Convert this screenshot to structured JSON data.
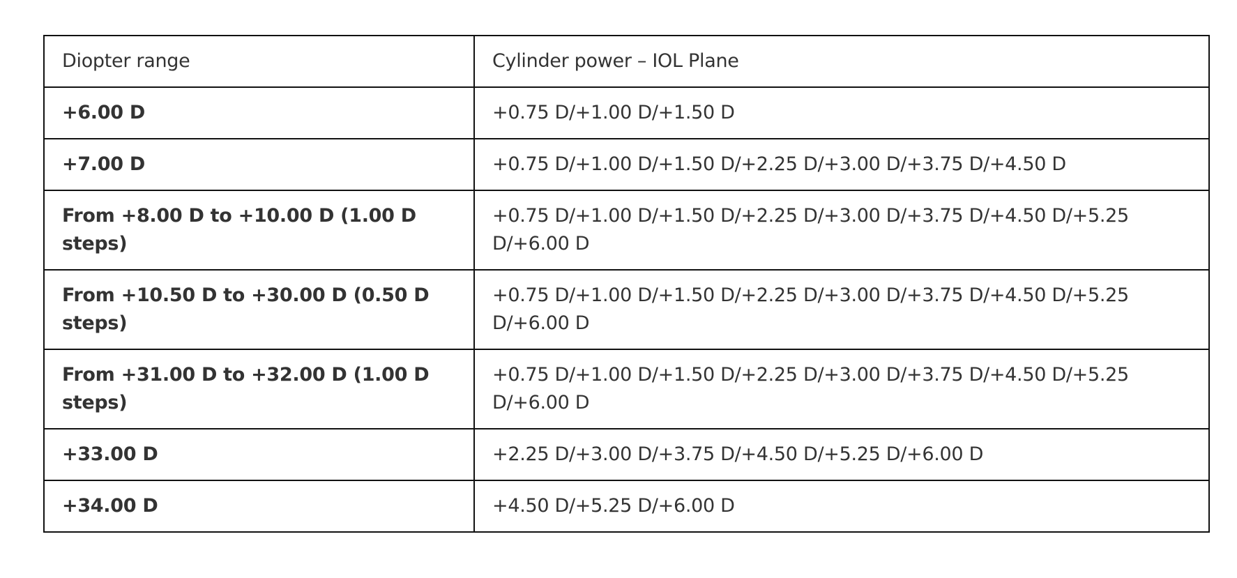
{
  "table": {
    "headers": [
      "Diopter range",
      "Cylinder power – IOL Plane"
    ],
    "rows": [
      {
        "range": "+6.00 D",
        "cylinder": "+0.75 D/+1.00 D/+1.50 D"
      },
      {
        "range": "+7.00 D",
        "cylinder": "+0.75 D/+1.00 D/+1.50 D/+2.25 D/+3.00 D/+3.75 D/+4.50 D"
      },
      {
        "range": "From +8.00 D to +10.00 D (1.00 D steps)",
        "cylinder": "+0.75 D/+1.00 D/+1.50 D/+2.25 D/+3.00 D/+3.75 D/+4.50 D/+5.25 D/+6.00 D"
      },
      {
        "range": "From +10.50 D to +30.00 D (0.50 D steps)",
        "cylinder": "+0.75 D/+1.00 D/+1.50 D/+2.25 D/+3.00 D/+3.75 D/+4.50 D/+5.25 D/+6.00 D"
      },
      {
        "range": "From +31.00 D to +32.00 D (1.00 D steps)",
        "cylinder": "+0.75 D/+1.00 D/+1.50 D/+2.25 D/+3.00 D/+3.75 D/+4.50 D/+5.25 D/+6.00 D"
      },
      {
        "range": "+33.00 D",
        "cylinder": "+2.25 D/+3.00 D/+3.75 D/+4.50 D/+5.25 D/+6.00 D"
      },
      {
        "range": "+34.00 D",
        "cylinder": "+4.50 D/+5.25 D/+6.00 D"
      }
    ]
  }
}
